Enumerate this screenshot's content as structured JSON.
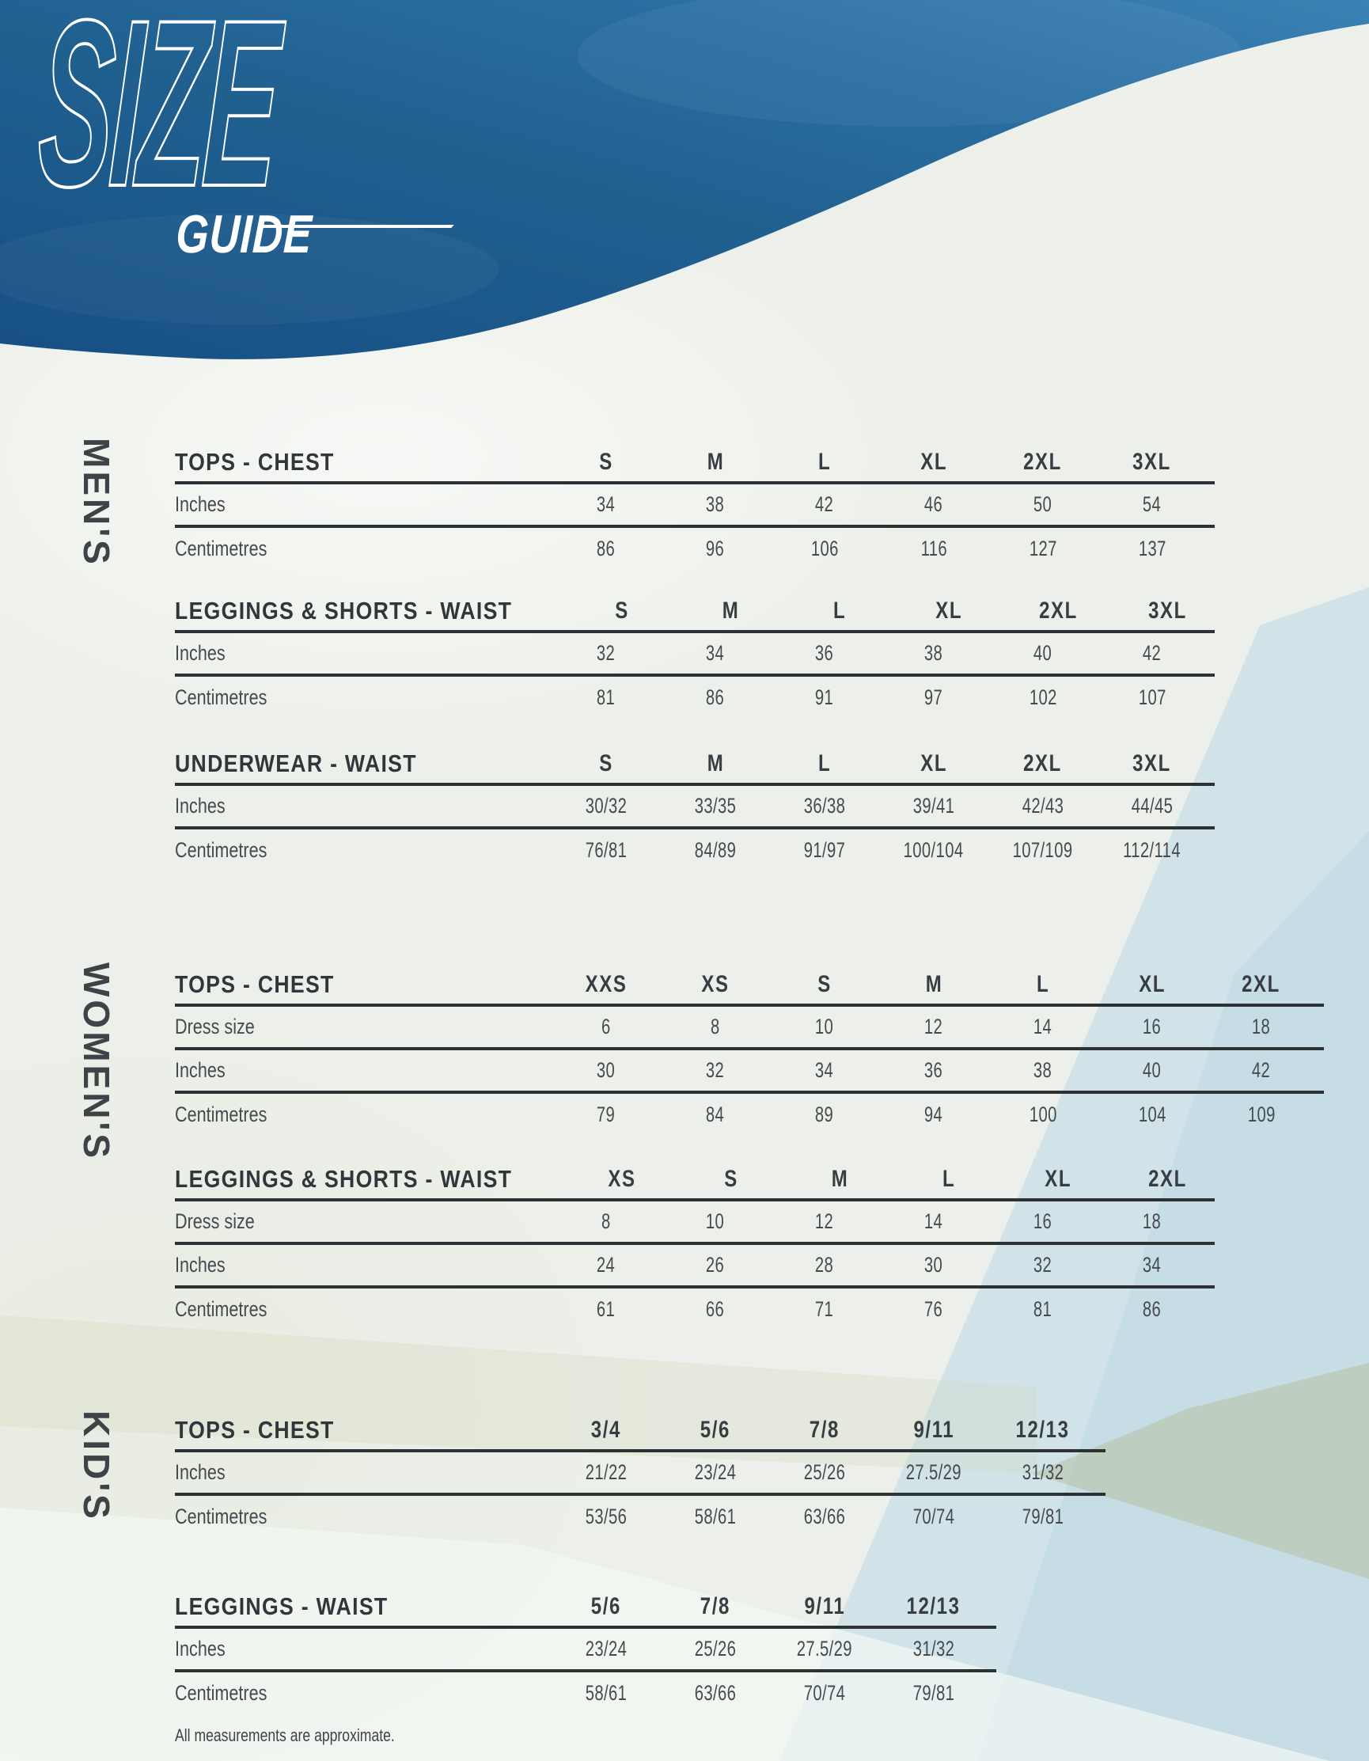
{
  "logo": {
    "line1": "SIZE",
    "line2": "GUIDE"
  },
  "colors": {
    "header_blue": "#20608f",
    "header_blue_light": "#3b82b5",
    "page_bg": "#edf0ea",
    "accent_pale_blue": "#cfe2ea",
    "line": "#2c3134",
    "text": "#454a4f",
    "logo_white": "#ffffff"
  },
  "footer": {
    "note": "All measurements are approximate."
  },
  "sections": [
    {
      "id": "mens",
      "label": "MEN'S",
      "tables": [
        {
          "title": "TOPS - CHEST",
          "columns": [
            "S",
            "M",
            "L",
            "XL",
            "2XL",
            "3XL"
          ],
          "rows": [
            {
              "label": "Inches",
              "values": [
                "34",
                "38",
                "42",
                "46",
                "50",
                "54"
              ]
            },
            {
              "label": "Centimetres",
              "values": [
                "86",
                "96",
                "106",
                "116",
                "127",
                "137"
              ]
            }
          ]
        },
        {
          "title": "LEGGINGS & SHORTS - WAIST",
          "columns": [
            "S",
            "M",
            "L",
            "XL",
            "2XL",
            "3XL"
          ],
          "rows": [
            {
              "label": "Inches",
              "values": [
                "32",
                "34",
                "36",
                "38",
                "40",
                "42"
              ]
            },
            {
              "label": "Centimetres",
              "values": [
                "81",
                "86",
                "91",
                "97",
                "102",
                "107"
              ]
            }
          ]
        },
        {
          "title": "UNDERWEAR - WAIST",
          "columns": [
            "S",
            "M",
            "L",
            "XL",
            "2XL",
            "3XL"
          ],
          "rows": [
            {
              "label": "Inches",
              "values": [
                "30/32",
                "33/35",
                "36/38",
                "39/41",
                "42/43",
                "44/45"
              ]
            },
            {
              "label": "Centimetres",
              "values": [
                "76/81",
                "84/89",
                "91/97",
                "100/104",
                "107/109",
                "112/114"
              ]
            }
          ]
        }
      ]
    },
    {
      "id": "womens",
      "label": "WOMEN'S",
      "tables": [
        {
          "title": "TOPS - CHEST",
          "columns": [
            "XXS",
            "XS",
            "S",
            "M",
            "L",
            "XL",
            "2XL"
          ],
          "rows": [
            {
              "label": "Dress size",
              "values": [
                "6",
                "8",
                "10",
                "12",
                "14",
                "16",
                "18"
              ]
            },
            {
              "label": "Inches",
              "values": [
                "30",
                "32",
                "34",
                "36",
                "38",
                "40",
                "42"
              ]
            },
            {
              "label": "Centimetres",
              "values": [
                "79",
                "84",
                "89",
                "94",
                "100",
                "104",
                "109"
              ]
            }
          ]
        },
        {
          "title": "LEGGINGS & SHORTS - WAIST",
          "columns": [
            "XS",
            "S",
            "M",
            "L",
            "XL",
            "2XL"
          ],
          "rows": [
            {
              "label": "Dress size",
              "values": [
                "8",
                "10",
                "12",
                "14",
                "16",
                "18"
              ]
            },
            {
              "label": "Inches",
              "values": [
                "24",
                "26",
                "28",
                "30",
                "32",
                "34"
              ]
            },
            {
              "label": "Centimetres",
              "values": [
                "61",
                "66",
                "71",
                "76",
                "81",
                "86"
              ]
            }
          ]
        }
      ]
    },
    {
      "id": "kids",
      "label": "KID'S",
      "tables": [
        {
          "title": "TOPS - CHEST",
          "columns": [
            "3/4",
            "5/6",
            "7/8",
            "9/11",
            "12/13"
          ],
          "rows": [
            {
              "label": "Inches",
              "values": [
                "21/22",
                "23/24",
                "25/26",
                "27.5/29",
                "31/32"
              ]
            },
            {
              "label": "Centimetres",
              "values": [
                "53/56",
                "58/61",
                "63/66",
                "70/74",
                "79/81"
              ]
            }
          ]
        },
        {
          "title": "LEGGINGS - WAIST",
          "columns": [
            "5/6",
            "7/8",
            "9/11",
            "12/13"
          ],
          "rows": [
            {
              "label": "Inches",
              "values": [
                "23/24",
                "25/26",
                "27.5/29",
                "31/32"
              ]
            },
            {
              "label": "Centimetres",
              "values": [
                "58/61",
                "63/66",
                "70/74",
                "79/81"
              ]
            }
          ]
        }
      ]
    }
  ]
}
